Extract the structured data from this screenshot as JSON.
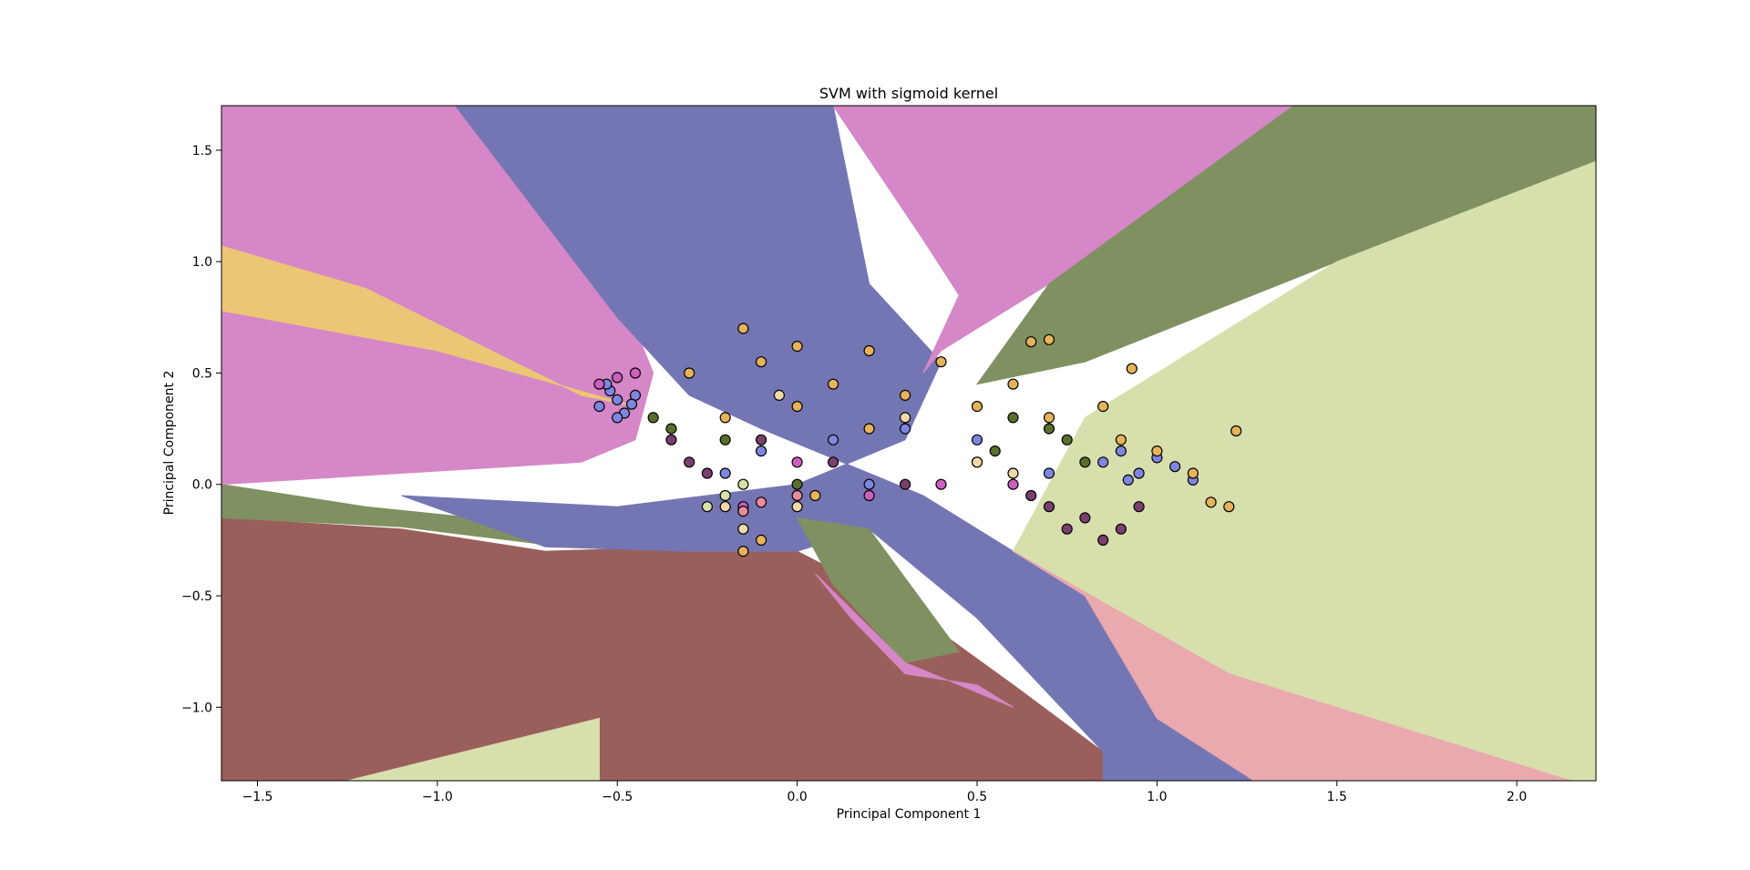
{
  "chart_data": {
    "type": "scatter",
    "title": "SVM with sigmoid kernel",
    "xlabel": "Principal Component 1",
    "ylabel": "Principal Component 2",
    "xlim": [
      -1.6,
      2.22
    ],
    "ylim": [
      -1.33,
      1.7
    ],
    "x_ticks": [
      -1.5,
      -1.0,
      -0.5,
      0.0,
      0.5,
      1.0,
      1.5,
      2.0
    ],
    "x_tick_labels": [
      "−1.5",
      "−1.0",
      "−0.5",
      "0.0",
      "0.5",
      "1.0",
      "1.5",
      "2.0"
    ],
    "y_ticks": [
      -1.0,
      -0.5,
      0.0,
      0.5,
      1.0,
      1.5
    ],
    "y_tick_labels": [
      "−1.0",
      "−0.5",
      "0.0",
      "0.5",
      "1.0",
      "1.5"
    ],
    "grid": false,
    "legend": "none",
    "class_colors": [
      "#3f3f9e",
      "#e6b25a",
      "#cc5fbf",
      "#5a6e2e",
      "#a2c87a",
      "#7a2e2e",
      "#d8e0a8",
      "#e88c9a",
      "#7a3f6e",
      "#7e86e0"
    ],
    "decision_regions": [
      {
        "class": "brown",
        "color": "#9b5f5b",
        "polygon": [
          [
            -1.6,
            -0.15
          ],
          [
            -1.1,
            -0.2
          ],
          [
            -0.7,
            -0.3
          ],
          [
            -0.3,
            -0.28
          ],
          [
            0.0,
            -0.3
          ],
          [
            0.3,
            -0.55
          ],
          [
            0.6,
            -0.9
          ],
          [
            0.85,
            -1.2
          ],
          [
            0.85,
            -1.33
          ],
          [
            -1.6,
            -1.33
          ]
        ]
      },
      {
        "class": "yellow-green",
        "color": "#d7e0ad",
        "polygon": [
          [
            -1.25,
            -1.33
          ],
          [
            -0.55,
            -1.05
          ],
          [
            -0.55,
            -1.33
          ]
        ]
      },
      {
        "class": "olive",
        "color": "#7f9161",
        "polygon": [
          [
            -1.6,
            0.0
          ],
          [
            -1.2,
            -0.1
          ],
          [
            -0.6,
            -0.2
          ],
          [
            -0.3,
            -0.18
          ],
          [
            -0.7,
            -0.27
          ],
          [
            -1.1,
            -0.19
          ],
          [
            -1.6,
            -0.15
          ]
        ]
      },
      {
        "class": "pink",
        "color": "#d587c7",
        "polygon": [
          [
            -1.6,
            1.7
          ],
          [
            -0.95,
            1.7
          ],
          [
            -0.5,
            0.9
          ],
          [
            -0.4,
            0.5
          ],
          [
            -0.45,
            0.2
          ],
          [
            -0.6,
            0.1
          ],
          [
            -1.6,
            0.0
          ]
        ]
      },
      {
        "class": "yellow",
        "color": "#ebc775",
        "polygon": [
          [
            -1.6,
            1.07
          ],
          [
            -1.2,
            0.88
          ],
          [
            -0.6,
            0.4
          ],
          [
            -0.45,
            0.35
          ],
          [
            -1.0,
            0.6
          ],
          [
            -1.6,
            0.78
          ]
        ]
      },
      {
        "class": "blue",
        "color": "#7476b4",
        "polygon": [
          [
            -0.95,
            1.7
          ],
          [
            0.1,
            1.7
          ],
          [
            0.35,
            1.1
          ],
          [
            0.45,
            0.85
          ],
          [
            0.55,
            0.9
          ],
          [
            0.8,
            1.7
          ],
          [
            0.1,
            1.7
          ],
          [
            0.2,
            0.9
          ],
          [
            0.4,
            0.55
          ],
          [
            0.3,
            0.2
          ],
          [
            0.0,
            0.0
          ],
          [
            -0.5,
            -0.1
          ],
          [
            -1.1,
            -0.05
          ],
          [
            -0.7,
            -0.28
          ],
          [
            -0.3,
            -0.3
          ],
          [
            0.0,
            -0.3
          ],
          [
            0.2,
            -0.2
          ],
          [
            0.5,
            -0.6
          ],
          [
            0.85,
            -1.2
          ],
          [
            0.85,
            -1.33
          ],
          [
            1.27,
            -1.33
          ],
          [
            1.0,
            -1.05
          ],
          [
            0.8,
            -0.5
          ],
          [
            0.6,
            -0.3
          ],
          [
            0.35,
            -0.05
          ],
          [
            -0.1,
            0.25
          ],
          [
            -0.3,
            0.4
          ],
          [
            -0.5,
            0.75
          ]
        ]
      },
      {
        "class": "pink-right",
        "color": "#d587c7",
        "polygon": [
          [
            0.1,
            1.7
          ],
          [
            1.38,
            1.7
          ],
          [
            0.7,
            0.9
          ],
          [
            0.4,
            0.6
          ],
          [
            0.35,
            0.5
          ],
          [
            0.45,
            0.85
          ],
          [
            0.35,
            1.1
          ]
        ]
      },
      {
        "class": "olive-right",
        "color": "#7f9161",
        "polygon": [
          [
            1.38,
            1.7
          ],
          [
            2.22,
            1.7
          ],
          [
            2.22,
            1.45
          ],
          [
            1.5,
            1.0
          ],
          [
            0.8,
            0.55
          ],
          [
            0.5,
            0.45
          ],
          [
            0.7,
            0.9
          ]
        ]
      },
      {
        "class": "yellow-green-right",
        "color": "#d7e0ad",
        "polygon": [
          [
            2.22,
            1.45
          ],
          [
            2.22,
            -1.33
          ],
          [
            2.15,
            -1.33
          ],
          [
            1.2,
            -0.85
          ],
          [
            0.6,
            -0.3
          ],
          [
            0.8,
            0.3
          ],
          [
            1.5,
            1.0
          ]
        ]
      },
      {
        "class": "pink-lower-right",
        "color": "#eaa9ae",
        "polygon": [
          [
            0.6,
            -0.3
          ],
          [
            1.2,
            -0.85
          ],
          [
            2.15,
            -1.33
          ],
          [
            1.27,
            -1.33
          ],
          [
            1.0,
            -1.05
          ],
          [
            0.8,
            -0.5
          ]
        ]
      },
      {
        "class": "olive-mid",
        "color": "#7f9161",
        "polygon": [
          [
            0.0,
            -0.15
          ],
          [
            0.2,
            -0.2
          ],
          [
            0.45,
            -0.75
          ],
          [
            0.3,
            -0.8
          ],
          [
            0.1,
            -0.45
          ]
        ]
      },
      {
        "class": "pink-mid",
        "color": "#d587c7",
        "polygon": [
          [
            0.05,
            -0.4
          ],
          [
            0.3,
            -0.8
          ],
          [
            0.6,
            -1.0
          ],
          [
            0.5,
            -0.9
          ],
          [
            0.3,
            -0.85
          ],
          [
            0.15,
            -0.6
          ]
        ]
      }
    ],
    "series": [
      {
        "color": "#7e86e0",
        "points": [
          [
            -0.52,
            0.42
          ],
          [
            -0.5,
            0.38
          ],
          [
            -0.55,
            0.35
          ],
          [
            -0.48,
            0.32
          ],
          [
            -0.45,
            0.4
          ],
          [
            -0.53,
            0.45
          ],
          [
            -0.5,
            0.3
          ],
          [
            -0.46,
            0.36
          ],
          [
            0.9,
            0.15
          ],
          [
            0.95,
            0.05
          ],
          [
            1.0,
            0.12
          ],
          [
            1.05,
            0.08
          ],
          [
            0.92,
            0.02
          ],
          [
            0.85,
            0.1
          ],
          [
            1.1,
            0.02
          ],
          [
            0.3,
            0.25
          ],
          [
            0.1,
            0.2
          ],
          [
            -0.1,
            0.15
          ],
          [
            0.5,
            0.2
          ],
          [
            0.7,
            0.05
          ],
          [
            -0.2,
            0.05
          ],
          [
            0.2,
            0.0
          ]
        ]
      },
      {
        "color": "#e6b25a",
        "points": [
          [
            -0.3,
            0.5
          ],
          [
            -0.1,
            0.55
          ],
          [
            0.1,
            0.45
          ],
          [
            0.3,
            0.4
          ],
          [
            0.5,
            0.35
          ],
          [
            0.7,
            0.3
          ],
          [
            0.9,
            0.2
          ],
          [
            1.0,
            0.15
          ],
          [
            1.1,
            0.05
          ],
          [
            1.15,
            -0.08
          ],
          [
            1.2,
            -0.1
          ],
          [
            1.22,
            0.24
          ],
          [
            0.85,
            0.35
          ],
          [
            0.6,
            0.45
          ],
          [
            0.4,
            0.55
          ],
          [
            0.2,
            0.6
          ],
          [
            0.0,
            0.62
          ],
          [
            -0.15,
            0.7
          ],
          [
            -0.2,
            0.3
          ],
          [
            0.0,
            0.35
          ],
          [
            0.2,
            0.25
          ],
          [
            -0.15,
            -0.3
          ],
          [
            -0.1,
            -0.25
          ],
          [
            0.05,
            -0.05
          ],
          [
            0.93,
            0.52
          ],
          [
            0.65,
            0.64
          ],
          [
            0.7,
            0.65
          ]
        ]
      },
      {
        "color": "#cc5fbf",
        "points": [
          [
            -0.55,
            0.45
          ],
          [
            -0.5,
            0.48
          ],
          [
            -0.45,
            0.5
          ],
          [
            0.5,
            0.1
          ],
          [
            0.4,
            0.0
          ],
          [
            0.2,
            -0.05
          ],
          [
            0.6,
            0.0
          ],
          [
            -0.15,
            -0.1
          ],
          [
            0.0,
            0.1
          ]
        ]
      },
      {
        "color": "#7a3f6e",
        "points": [
          [
            -0.35,
            0.2
          ],
          [
            -0.3,
            0.1
          ],
          [
            -0.25,
            0.05
          ],
          [
            0.7,
            -0.1
          ],
          [
            0.75,
            -0.2
          ],
          [
            0.8,
            -0.15
          ],
          [
            0.85,
            -0.25
          ],
          [
            0.9,
            -0.2
          ],
          [
            0.95,
            -0.1
          ],
          [
            0.65,
            -0.05
          ],
          [
            -0.1,
            0.2
          ],
          [
            0.1,
            0.1
          ],
          [
            0.3,
            0.0
          ]
        ]
      },
      {
        "color": "#5a6e2e",
        "points": [
          [
            -0.4,
            0.3
          ],
          [
            -0.35,
            0.25
          ],
          [
            0.6,
            0.3
          ],
          [
            0.7,
            0.25
          ],
          [
            0.75,
            0.2
          ],
          [
            0.8,
            0.1
          ],
          [
            -0.2,
            0.2
          ],
          [
            0.0,
            0.0
          ],
          [
            0.55,
            0.15
          ]
        ]
      },
      {
        "color": "#f0d8a8",
        "points": [
          [
            -0.15,
            -0.2
          ],
          [
            -0.2,
            -0.1
          ],
          [
            0.0,
            -0.1
          ],
          [
            0.5,
            0.1
          ],
          [
            0.6,
            0.05
          ],
          [
            0.3,
            0.3
          ],
          [
            -0.05,
            0.4
          ]
        ]
      },
      {
        "color": "#e88c9a",
        "points": [
          [
            -0.15,
            -0.12
          ],
          [
            -0.1,
            -0.08
          ],
          [
            0.0,
            -0.05
          ]
        ]
      },
      {
        "color": "#d8e0a8",
        "points": [
          [
            -0.2,
            -0.05
          ],
          [
            -0.25,
            -0.1
          ],
          [
            -0.15,
            0.0
          ]
        ]
      }
    ]
  }
}
